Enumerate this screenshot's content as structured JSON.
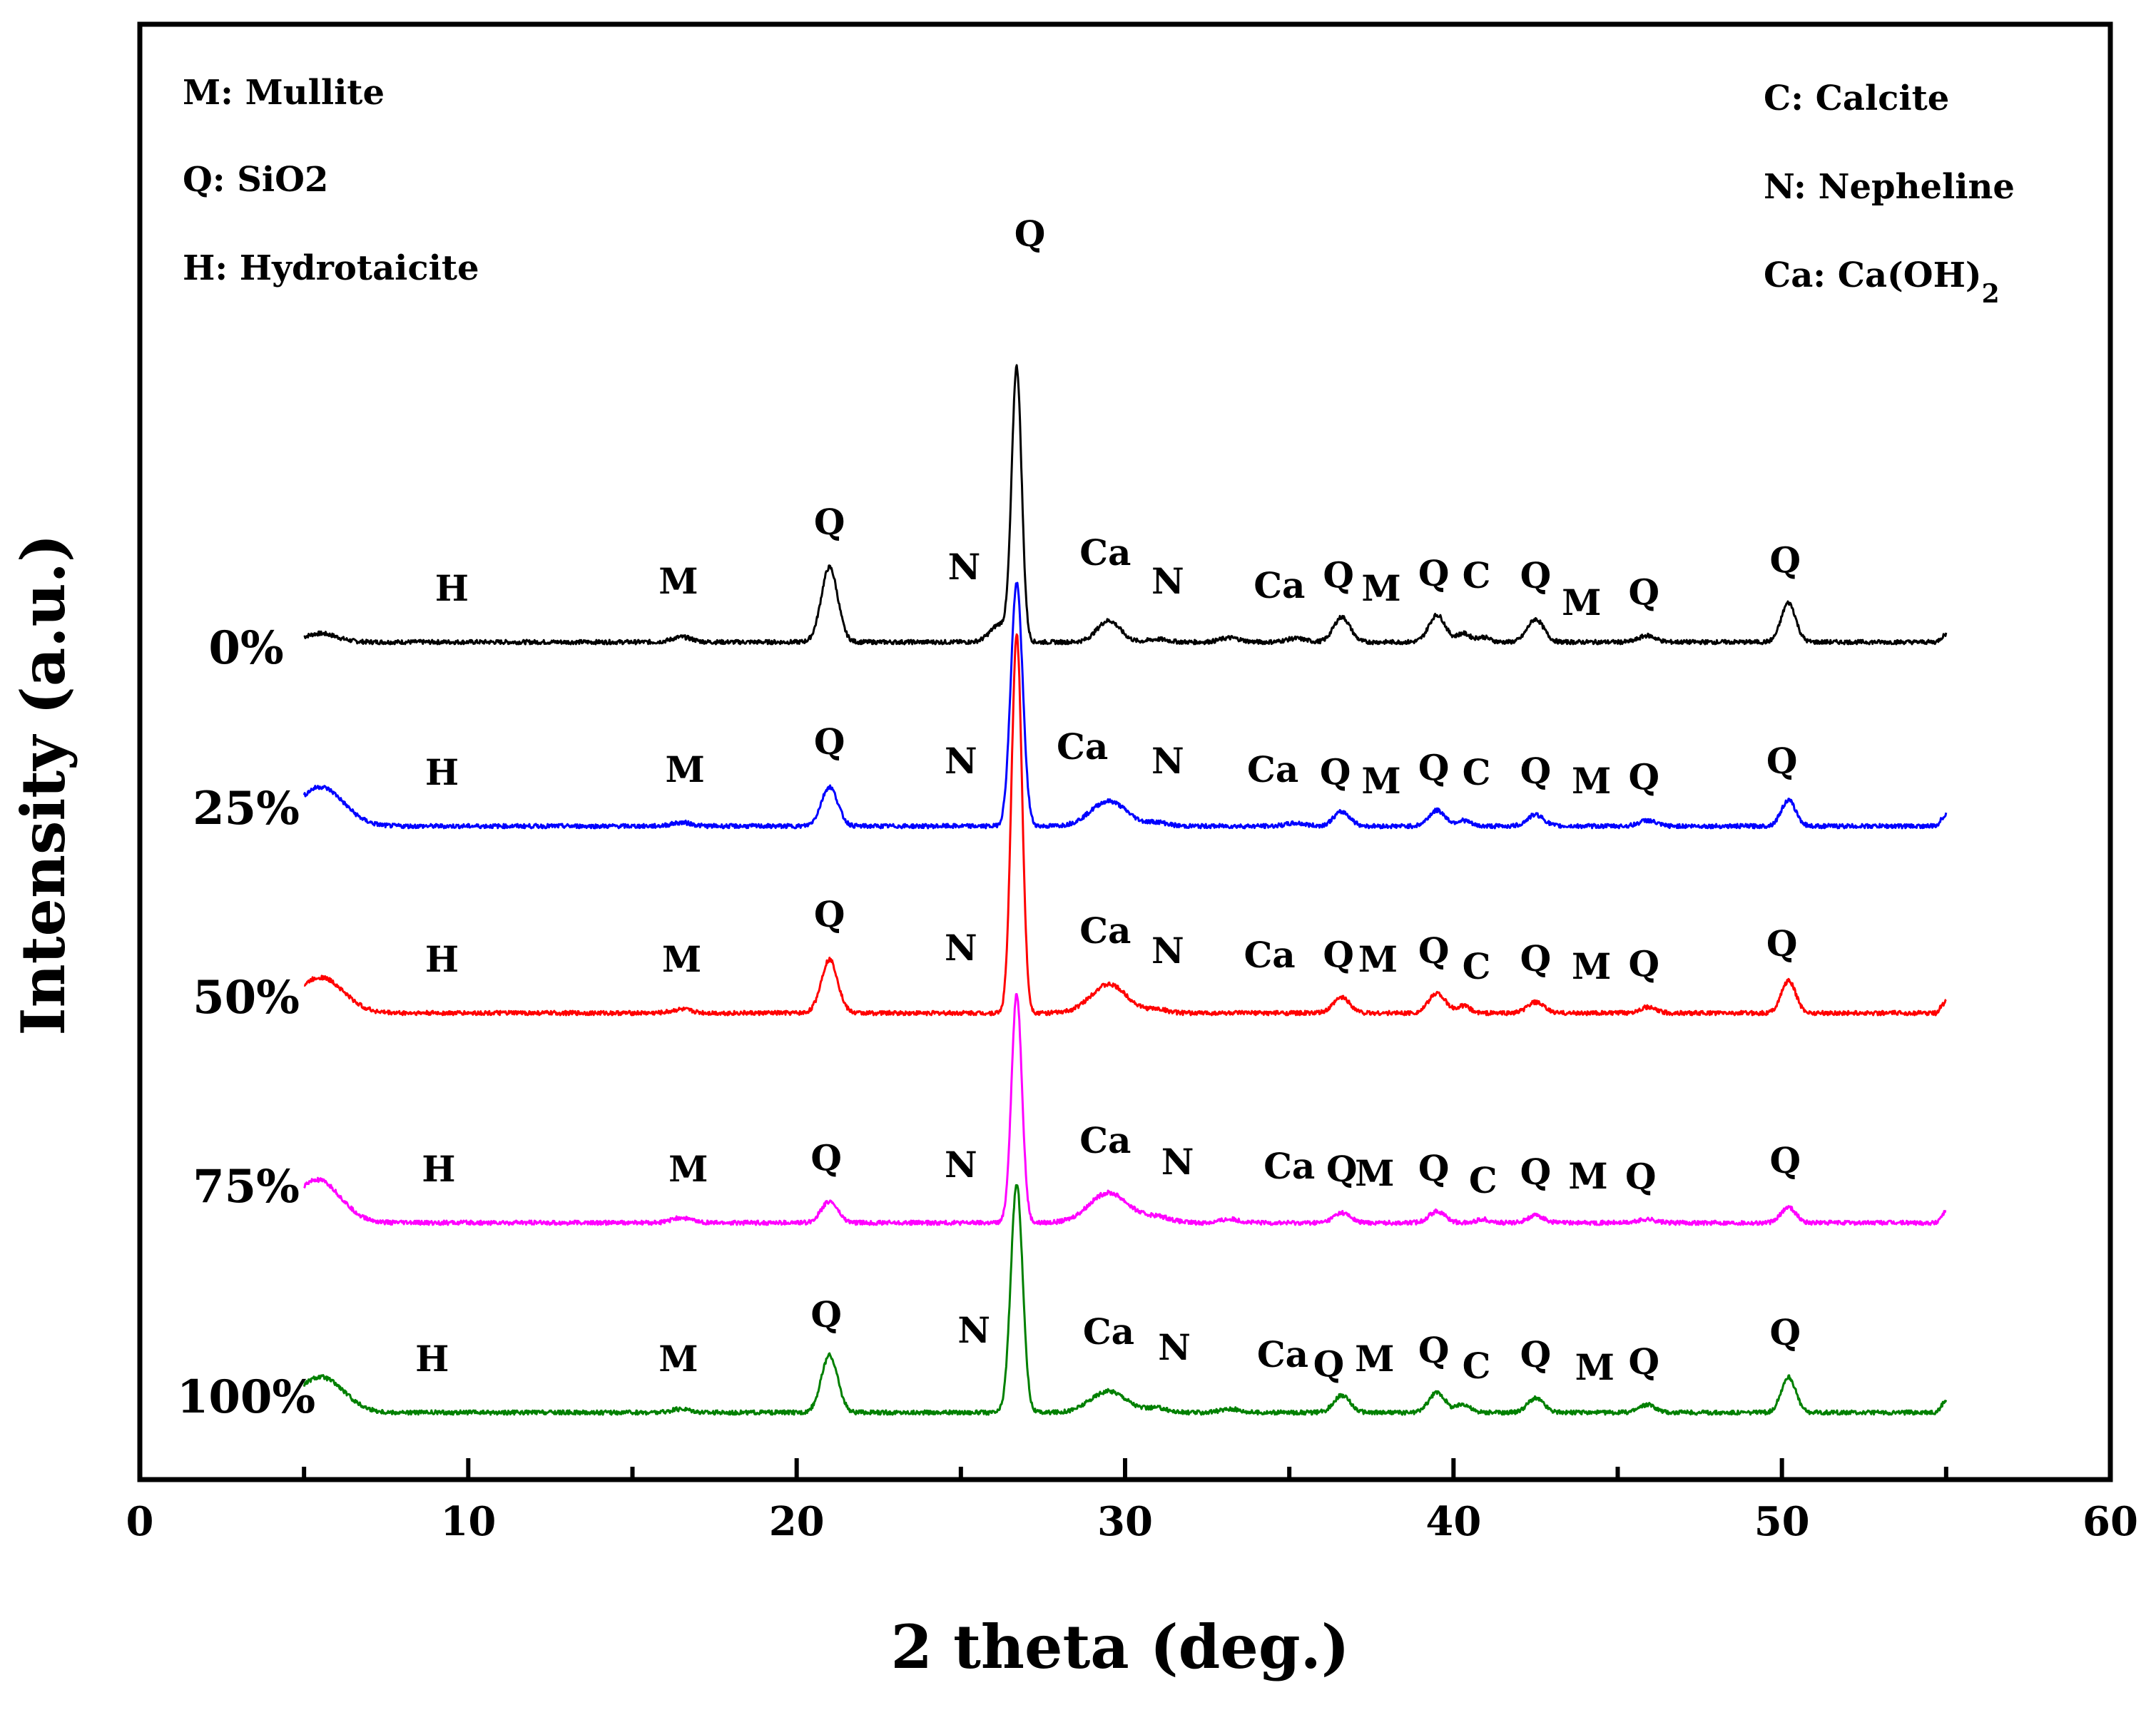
{
  "chart_data": {
    "type": "line",
    "title": "",
    "xlabel": "2 theta (deg.)",
    "ylabel": "Intensity (a.u.)",
    "xlim": [
      0,
      60
    ],
    "xticks": [
      "0",
      "10",
      "20",
      "30",
      "40",
      "50",
      "60"
    ],
    "legend_left": [
      "M: Mullite",
      "Q: SiO2",
      "H: Hydrotaicite"
    ],
    "legend_right": [
      "C: Calcite",
      "N: Nepheline"
    ],
    "legend_right_ca": {
      "prefix": "Ca:  Ca(OH)",
      "subscript": "2"
    },
    "series": [
      {
        "name": "0%",
        "color": "#000000",
        "baseline": 0.0,
        "tail_rise": 2,
        "peaks": [
          [
            5.5,
            12,
            0.5
          ],
          [
            16.5,
            7,
            0.3
          ],
          [
            21.0,
            105,
            0.25
          ],
          [
            26.2,
            25,
            0.3
          ],
          [
            26.7,
            380,
            0.15
          ],
          [
            29.5,
            30,
            0.35
          ],
          [
            31.0,
            4,
            0.3
          ],
          [
            33.2,
            6,
            0.3
          ],
          [
            35.2,
            5,
            0.3
          ],
          [
            36.6,
            35,
            0.25
          ],
          [
            39.5,
            38,
            0.25
          ],
          [
            40.3,
            12,
            0.2
          ],
          [
            40.9,
            7,
            0.2
          ],
          [
            42.5,
            32,
            0.25
          ],
          [
            45.9,
            9,
            0.25
          ],
          [
            50.2,
            55,
            0.22
          ]
        ],
        "labels": [
          [
            "H",
            9.5,
            1,
            0
          ],
          [
            "M",
            16.4,
            1,
            10
          ],
          [
            "Q",
            21.0,
            0,
            6
          ],
          [
            "N",
            25.1,
            1,
            30
          ],
          [
            "Q",
            27.1,
            0,
            0
          ],
          [
            "Ca",
            29.4,
            1,
            50
          ],
          [
            "N",
            31.3,
            1,
            10
          ],
          [
            "Ca",
            34.7,
            1,
            4
          ],
          [
            "Q",
            36.5,
            0,
            4
          ],
          [
            "M",
            37.8,
            1,
            0
          ],
          [
            "Q",
            39.4,
            0,
            4
          ],
          [
            "C",
            40.7,
            1,
            18
          ],
          [
            "Q",
            42.5,
            0,
            4
          ],
          [
            "M",
            43.9,
            1,
            -20
          ],
          [
            "Q",
            45.8,
            0,
            4
          ],
          [
            "Q",
            50.1,
            0,
            8
          ]
        ]
      },
      {
        "name": "25%",
        "color": "#0000ff",
        "baseline": 0.0,
        "tail_rise": 3,
        "peaks": [
          [
            5.5,
            55,
            0.7
          ],
          [
            16.5,
            5,
            0.3
          ],
          [
            21.0,
            55,
            0.25
          ],
          [
            26.7,
            340,
            0.18
          ],
          [
            29.5,
            35,
            0.55
          ],
          [
            31.0,
            5,
            0.3
          ],
          [
            35.2,
            4,
            0.3
          ],
          [
            36.6,
            20,
            0.25
          ],
          [
            39.5,
            22,
            0.25
          ],
          [
            40.3,
            8,
            0.2
          ],
          [
            42.5,
            16,
            0.25
          ],
          [
            45.9,
            8,
            0.25
          ],
          [
            50.2,
            36,
            0.22
          ]
        ],
        "labels": [
          [
            "H",
            9.2,
            1,
            0
          ],
          [
            "M",
            16.6,
            1,
            4
          ],
          [
            "Q",
            21.0,
            0,
            6
          ],
          [
            "N",
            25.0,
            1,
            16
          ],
          [
            "Ca",
            28.7,
            1,
            36
          ],
          [
            "N",
            31.3,
            1,
            16
          ],
          [
            "Ca",
            34.5,
            1,
            4
          ],
          [
            "Q",
            36.4,
            0,
            4
          ],
          [
            "M",
            37.8,
            1,
            -12
          ],
          [
            "Q",
            39.4,
            0,
            4
          ],
          [
            "C",
            40.7,
            1,
            0
          ],
          [
            "Q",
            42.5,
            0,
            4
          ],
          [
            "M",
            44.2,
            1,
            -12
          ],
          [
            "Q",
            45.8,
            0,
            4
          ],
          [
            "Q",
            50.0,
            0,
            10
          ]
        ]
      },
      {
        "name": "50%",
        "color": "#ff0000",
        "baseline": 0.0,
        "tail_rise": 3,
        "peaks": [
          [
            5.5,
            50,
            0.7
          ],
          [
            16.5,
            5,
            0.3
          ],
          [
            21.0,
            75,
            0.25
          ],
          [
            26.7,
            530,
            0.16
          ],
          [
            29.5,
            40,
            0.55
          ],
          [
            31.0,
            5,
            0.3
          ],
          [
            36.6,
            22,
            0.25
          ],
          [
            39.5,
            28,
            0.25
          ],
          [
            40.3,
            10,
            0.2
          ],
          [
            42.5,
            15,
            0.25
          ],
          [
            45.9,
            8,
            0.25
          ],
          [
            50.2,
            45,
            0.22
          ]
        ],
        "labels": [
          [
            "H",
            9.2,
            1,
            0
          ],
          [
            "M",
            16.5,
            1,
            0
          ],
          [
            "Q",
            21.0,
            0,
            6
          ],
          [
            "N",
            25.0,
            1,
            16
          ],
          [
            "Ca",
            29.4,
            1,
            40
          ],
          [
            "N",
            31.3,
            1,
            12
          ],
          [
            "Ca",
            34.4,
            1,
            6
          ],
          [
            "Q",
            36.5,
            0,
            4
          ],
          [
            "M",
            37.7,
            1,
            0
          ],
          [
            "Q",
            39.4,
            0,
            4
          ],
          [
            "C",
            40.7,
            1,
            -10
          ],
          [
            "Q",
            42.5,
            0,
            4
          ],
          [
            "M",
            44.2,
            1,
            -10
          ],
          [
            "Q",
            45.8,
            0,
            4
          ],
          [
            "Q",
            50.0,
            0,
            10
          ]
        ]
      },
      {
        "name": "75%",
        "color": "#ff00ff",
        "baseline": 0.0,
        "tail_rise": 3,
        "peaks": [
          [
            5.4,
            60,
            0.7
          ],
          [
            16.5,
            7,
            0.3
          ],
          [
            21.0,
            30,
            0.25
          ],
          [
            26.7,
            320,
            0.16
          ],
          [
            29.5,
            42,
            0.6
          ],
          [
            31.0,
            8,
            0.4
          ],
          [
            33.2,
            5,
            0.3
          ],
          [
            36.6,
            14,
            0.25
          ],
          [
            39.5,
            16,
            0.25
          ],
          [
            40.9,
            5,
            0.2
          ],
          [
            42.5,
            10,
            0.25
          ],
          [
            45.9,
            5,
            0.25
          ],
          [
            50.2,
            22,
            0.22
          ]
        ],
        "labels": [
          [
            "H",
            9.1,
            1,
            0
          ],
          [
            "M",
            16.7,
            1,
            0
          ],
          [
            "Q",
            20.9,
            0,
            6
          ],
          [
            "N",
            25.0,
            1,
            6
          ],
          [
            "Ca",
            29.4,
            1,
            40
          ],
          [
            "N",
            31.6,
            1,
            10
          ],
          [
            "Ca",
            35.0,
            1,
            4
          ],
          [
            "Q",
            36.6,
            0,
            4
          ],
          [
            "M",
            37.6,
            1,
            -6
          ],
          [
            "Q",
            39.4,
            0,
            4
          ],
          [
            "C",
            40.9,
            1,
            -16
          ],
          [
            "Q",
            42.5,
            0,
            4
          ],
          [
            "M",
            44.1,
            1,
            -10
          ],
          [
            "Q",
            45.7,
            0,
            4
          ],
          [
            "Q",
            50.1,
            0,
            10
          ]
        ]
      },
      {
        "name": "100%",
        "color": "#008000",
        "baseline": 0.0,
        "tail_rise": 3,
        "peaks": [
          [
            5.5,
            50,
            0.7
          ],
          [
            16.5,
            5,
            0.3
          ],
          [
            21.0,
            80,
            0.25
          ],
          [
            26.7,
            320,
            0.18
          ],
          [
            29.5,
            30,
            0.55
          ],
          [
            31.0,
            6,
            0.3
          ],
          [
            33.2,
            5,
            0.3
          ],
          [
            36.6,
            24,
            0.25
          ],
          [
            39.5,
            28,
            0.25
          ],
          [
            40.3,
            12,
            0.2
          ],
          [
            42.5,
            20,
            0.25
          ],
          [
            45.9,
            11,
            0.25
          ],
          [
            50.2,
            50,
            0.22
          ]
        ],
        "labels": [
          [
            "H",
            8.9,
            1,
            0
          ],
          [
            "M",
            16.4,
            1,
            0
          ],
          [
            "Q",
            20.9,
            0,
            6
          ],
          [
            "N",
            25.4,
            1,
            40
          ],
          [
            "Ca",
            29.5,
            1,
            38
          ],
          [
            "N",
            31.5,
            1,
            16
          ],
          [
            "Ca",
            34.8,
            1,
            6
          ],
          [
            "Q",
            36.2,
            0,
            4
          ],
          [
            "M",
            37.6,
            1,
            0
          ],
          [
            "Q",
            39.4,
            0,
            4
          ],
          [
            "C",
            40.7,
            1,
            -10
          ],
          [
            "Q",
            42.5,
            0,
            4
          ],
          [
            "M",
            44.3,
            1,
            -12
          ],
          [
            "Q",
            45.8,
            0,
            4
          ],
          [
            "Q",
            50.1,
            0,
            10
          ]
        ]
      }
    ]
  }
}
